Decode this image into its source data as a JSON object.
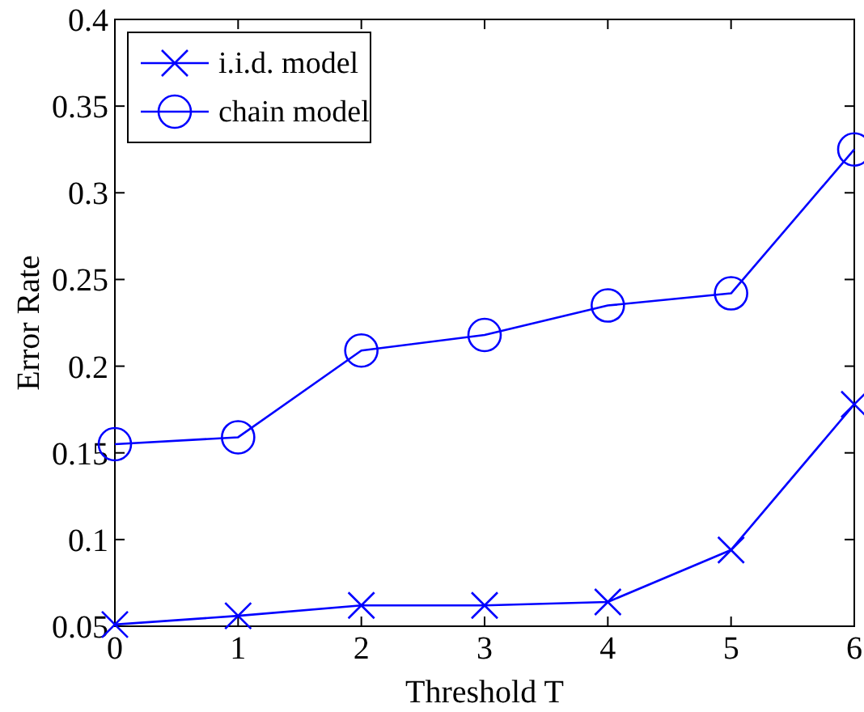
{
  "chart_data": {
    "type": "line",
    "xlabel": "Threshold T",
    "ylabel": "Error Rate",
    "x": [
      0,
      1,
      2,
      3,
      4,
      5,
      6
    ],
    "xlim": [
      0,
      6
    ],
    "xticks": [
      0,
      1,
      2,
      3,
      4,
      5,
      6
    ],
    "ylim": [
      0.05,
      0.4
    ],
    "yticks": [
      0.05,
      0.1,
      0.15,
      0.2,
      0.25,
      0.3,
      0.35,
      0.4
    ],
    "legend": "top left",
    "grid": false,
    "series": [
      {
        "name": "i.i.d. model",
        "color": "#0000ff",
        "marker": "cross",
        "values": [
          0.051,
          0.056,
          0.062,
          0.062,
          0.064,
          0.094,
          0.178
        ]
      },
      {
        "name": "chain model",
        "color": "#0000ff",
        "marker": "circle",
        "values": [
          0.155,
          0.159,
          0.209,
          0.218,
          0.235,
          0.242,
          0.325
        ]
      }
    ]
  }
}
